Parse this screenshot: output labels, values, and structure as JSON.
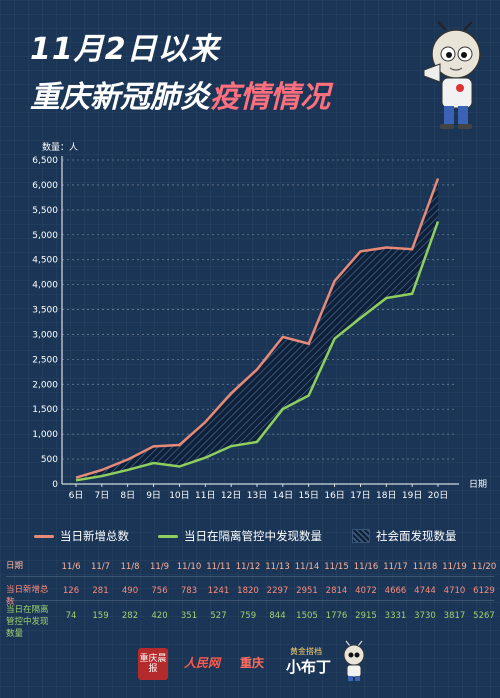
{
  "header": {
    "title_line1": "11月2日以来",
    "title_line2_white": "重庆新冠肺炎",
    "title_line2_pink": "疫情情况"
  },
  "colors": {
    "background": "#1a3556",
    "total_line": "#e88a78",
    "isolation_line": "#8fcf5e",
    "title_pink": "#ff6f7e"
  },
  "chart_data": {
    "type": "line",
    "title": "",
    "ylabel": "数量：人",
    "xlabel": "日期",
    "ylim": [
      0,
      6500
    ],
    "yticks": [
      "0",
      "500",
      "1,000",
      "1,500",
      "2,000",
      "2,500",
      "3,000",
      "3,500",
      "4,000",
      "4,500",
      "5,000",
      "5,500",
      "6,000",
      "6,500"
    ],
    "ytick_values": [
      0,
      500,
      1000,
      1500,
      2000,
      2500,
      3000,
      3500,
      4000,
      4500,
      5000,
      5500,
      6000,
      6500
    ],
    "categories": [
      "6日",
      "7日",
      "8日",
      "9日",
      "10日",
      "11日",
      "12日",
      "13日",
      "14日",
      "15日",
      "16日",
      "17日",
      "18日",
      "19日",
      "20日"
    ],
    "series": [
      {
        "name": "当日新增总数",
        "color": "#e88a78",
        "values": [
          126,
          281,
          490,
          756,
          783,
          1241,
          1820,
          2297,
          2951,
          2814,
          4072,
          4666,
          4744,
          4710,
          6129
        ]
      },
      {
        "name": "当日在隔离管控中发现数量",
        "color": "#8fcf5e",
        "values": [
          74,
          159,
          282,
          420,
          351,
          527,
          759,
          844,
          1505,
          1776,
          2915,
          3331,
          3730,
          3817,
          5267
        ]
      }
    ],
    "fill_between_label": "社会面发现数量",
    "grid": "horizontal-dashed",
    "legend_position": "bottom"
  },
  "legend": {
    "total": "当日新增总数",
    "iso": "当日在隔离管控中发现数量",
    "social": "社会面发现数量"
  },
  "table": {
    "date_header": "日期",
    "total_header": "当日新增总数",
    "iso_header": "当日在隔离管控中发现数量",
    "dates": [
      "11/6",
      "11/7",
      "11/8",
      "11/9",
      "11/10",
      "11/11",
      "11/12",
      "11/13",
      "11/14",
      "11/15",
      "11/16",
      "11/17",
      "11/18",
      "11/19",
      "11/20"
    ],
    "totals": [
      "126",
      "281",
      "490",
      "756",
      "783",
      "1241",
      "1820",
      "2297",
      "2951",
      "2814",
      "4072",
      "4666",
      "4744",
      "4710",
      "6129"
    ],
    "iso": [
      "74",
      "159",
      "282",
      "420",
      "351",
      "527",
      "759",
      "844",
      "1505",
      "1776",
      "2915",
      "3331",
      "3730",
      "3817",
      "5267"
    ]
  },
  "footer": {
    "logo1": "重庆晨报",
    "logo2": "人民网",
    "logo2_city": "重庆",
    "logo3_small": "黄金搭档",
    "logo3": "小布丁"
  }
}
